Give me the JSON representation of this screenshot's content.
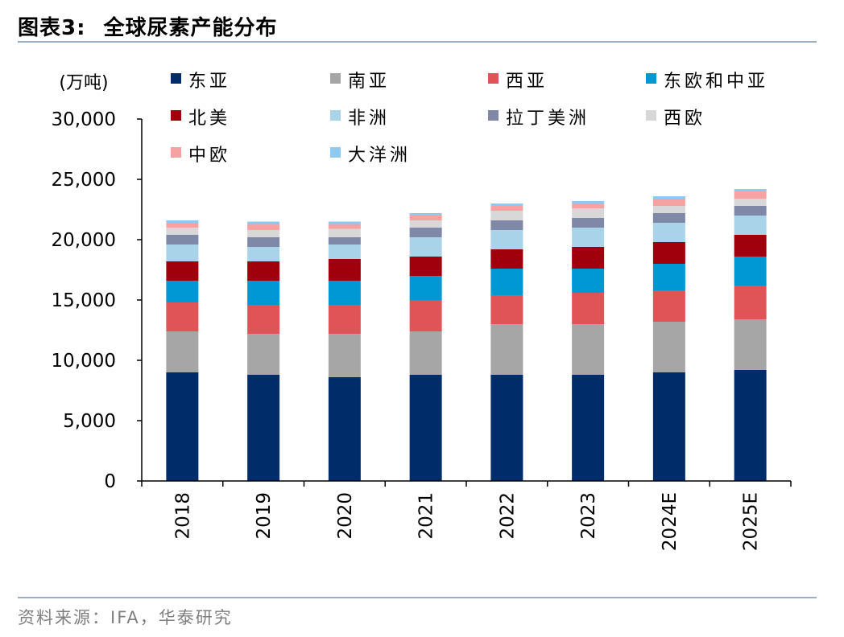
{
  "header": {
    "figure_label": "图表3:",
    "figure_title": "全球尿素产能分布"
  },
  "footer": {
    "source": "资料来源：IFA，华泰研究"
  },
  "chart_data": {
    "type": "bar",
    "stacked": true,
    "unit_label": "(万吨)",
    "categories": [
      "2018",
      "2019",
      "2020",
      "2021",
      "2022",
      "2023",
      "2024E",
      "2025E"
    ],
    "ylim": [
      0,
      30000
    ],
    "yticks": [
      0,
      5000,
      10000,
      15000,
      20000,
      25000,
      30000
    ],
    "ytick_labels": [
      "0",
      "5,000",
      "10,000",
      "15,000",
      "20,000",
      "25,000",
      "30,000"
    ],
    "grid": false,
    "legend_position": "top",
    "series": [
      {
        "name": "东亚",
        "color": "#002d6a",
        "values": [
          9000,
          8800,
          8600,
          8800,
          8800,
          8800,
          9000,
          9200
        ]
      },
      {
        "name": "南亚",
        "color": "#a6a6a6",
        "values": [
          3400,
          3400,
          3600,
          3600,
          4200,
          4200,
          4200,
          4200
        ]
      },
      {
        "name": "西亚",
        "color": "#e05458",
        "values": [
          2400,
          2400,
          2400,
          2600,
          2400,
          2600,
          2600,
          2800
        ]
      },
      {
        "name": "东欧和中亚",
        "color": "#0098d4",
        "values": [
          1800,
          2000,
          2000,
          2000,
          2200,
          2000,
          2200,
          2400
        ]
      },
      {
        "name": "北美",
        "color": "#a0000c",
        "values": [
          1600,
          1600,
          1800,
          1600,
          1600,
          1800,
          1800,
          1800
        ]
      },
      {
        "name": "非洲",
        "color": "#a9d3e8",
        "values": [
          1400,
          1200,
          1200,
          1600,
          1600,
          1600,
          1600,
          1600
        ]
      },
      {
        "name": "拉丁美洲",
        "color": "#7f88a6",
        "values": [
          800,
          800,
          600,
          800,
          800,
          800,
          800,
          800
        ]
      },
      {
        "name": "西欧",
        "color": "#d8d8d8",
        "values": [
          600,
          600,
          700,
          600,
          800,
          800,
          600,
          600
        ]
      },
      {
        "name": "中欧",
        "color": "#f6a2a2",
        "values": [
          400,
          500,
          400,
          400,
          400,
          400,
          600,
          600
        ]
      },
      {
        "name": "大洋洲",
        "color": "#8ec9f2",
        "values": [
          200,
          200,
          200,
          200,
          200,
          200,
          200,
          200
        ]
      }
    ]
  }
}
